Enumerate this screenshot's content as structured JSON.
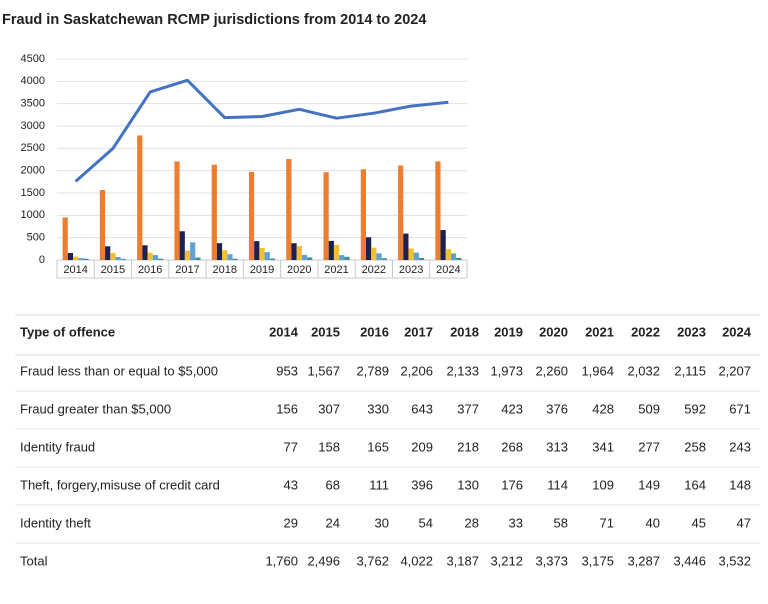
{
  "chart_data": {
    "type": "bar",
    "title": "Fraud in Saskatchewan RCMP jurisdictions from 2014 to 2024",
    "categories": [
      "2014",
      "2015",
      "2016",
      "2017",
      "2018",
      "2019",
      "2020",
      "2021",
      "2022",
      "2023",
      "2024"
    ],
    "ylim": [
      0,
      4500
    ],
    "yticks": [
      0,
      500,
      1000,
      1500,
      2000,
      2500,
      3000,
      3500,
      4000,
      4500
    ],
    "grid": true,
    "series": [
      {
        "color": "#ed7d31",
        "values": [
          953,
          1567,
          2789,
          2206,
          2133,
          1973,
          2260,
          1964,
          2032,
          2115,
          2207
        ]
      },
      {
        "color": "#1c2150",
        "values": [
          156,
          307,
          330,
          643,
          377,
          423,
          376,
          428,
          509,
          592,
          671
        ]
      },
      {
        "color": "#f2c12e",
        "values": [
          77,
          158,
          165,
          209,
          218,
          268,
          313,
          341,
          277,
          258,
          243
        ]
      },
      {
        "color": "#5fa3d4",
        "values": [
          43,
          68,
          111,
          396,
          130,
          176,
          114,
          109,
          149,
          164,
          148
        ]
      },
      {
        "color": "#3b8fa0",
        "values": [
          29,
          24,
          30,
          54,
          28,
          33,
          58,
          71,
          40,
          45,
          47
        ]
      },
      {
        "type": "line",
        "color": "#4472c4",
        "values": [
          1760,
          2496,
          3762,
          4022,
          3187,
          3212,
          3373,
          3175,
          3287,
          3446,
          3532
        ]
      }
    ]
  },
  "table": {
    "header": [
      "Type of offence",
      "2014",
      "2015",
      "2016",
      "2017",
      "2018",
      "2019",
      "2020",
      "2021",
      "2022",
      "2023",
      "2024"
    ],
    "rows": [
      [
        "Fraud less than or equal to $5,000",
        "953",
        "1,567",
        "2,789",
        "2,206",
        "2,133",
        "1,973",
        "2,260",
        "1,964",
        "2,032",
        "2,115",
        "2,207"
      ],
      [
        "Fraud greater than $5,000",
        "156",
        "307",
        "330",
        "643",
        "377",
        "423",
        "376",
        "428",
        "509",
        "592",
        "671"
      ],
      [
        "Identity fraud",
        "77",
        "158",
        "165",
        "209",
        "218",
        "268",
        "313",
        "341",
        "277",
        "258",
        "243"
      ],
      [
        "Theft, forgery,misuse of credit card",
        "43",
        "68",
        "111",
        "396",
        "130",
        "176",
        "114",
        "109",
        "149",
        "164",
        "148"
      ],
      [
        "Identity theft",
        "29",
        "24",
        "30",
        "54",
        "28",
        "33",
        "58",
        "71",
        "40",
        "45",
        "47"
      ],
      [
        "Total",
        "1,760",
        "2,496",
        "3,762",
        "4,022",
        "3,187",
        "3,212",
        "3,373",
        "3,175",
        "3,287",
        "3,446",
        "3,532"
      ]
    ]
  }
}
